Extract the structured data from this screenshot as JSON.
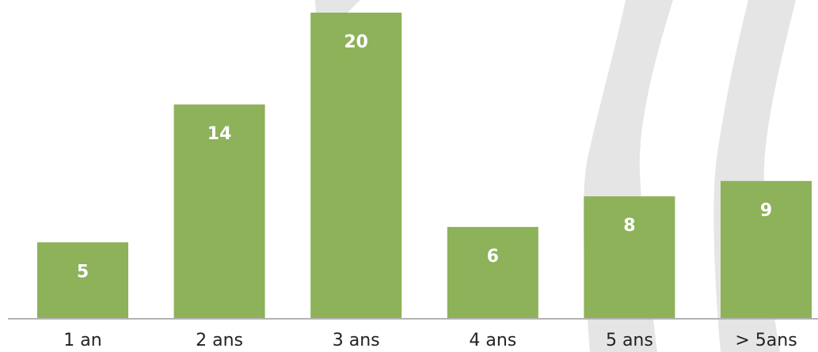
{
  "chart_data": {
    "type": "bar",
    "categories": [
      "1 an",
      "2 ans",
      "3 ans",
      "4 ans",
      "5 ans",
      "> 5ans"
    ],
    "values": [
      5,
      14,
      20,
      6,
      8,
      9
    ],
    "title": "",
    "xlabel": "",
    "ylabel": "",
    "ylim": [
      0,
      20
    ],
    "grid": false,
    "legend": "none",
    "data_labels": "inside-top",
    "colors": {
      "bar": "#8db25a",
      "label": "#ffffff",
      "axis": "#b3b3b3",
      "tick_text": "#222222",
      "background_shape": "#e5e5e5"
    }
  }
}
